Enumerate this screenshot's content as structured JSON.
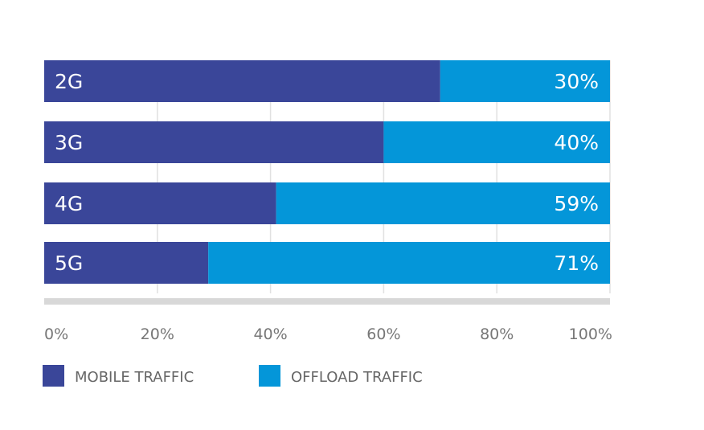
{
  "chart_data": {
    "type": "bar",
    "orientation": "horizontal",
    "stacked": true,
    "categories": [
      "2G",
      "3G",
      "4G",
      "5G"
    ],
    "series": [
      {
        "name": "MOBILE TRAFFIC",
        "values": [
          70,
          60,
          41,
          29
        ],
        "color": "#3a4699"
      },
      {
        "name": "OFFLOAD TRAFFIC",
        "values": [
          30,
          40,
          59,
          71
        ],
        "color": "#0496d9"
      }
    ],
    "value_labels": [
      "30%",
      "40%",
      "59%",
      "71%"
    ],
    "x_ticks": [
      "0%",
      "20%",
      "40%",
      "60%",
      "80%",
      "100%"
    ],
    "xlim": [
      0,
      100
    ],
    "grid": true,
    "legend": "bottom-left"
  }
}
